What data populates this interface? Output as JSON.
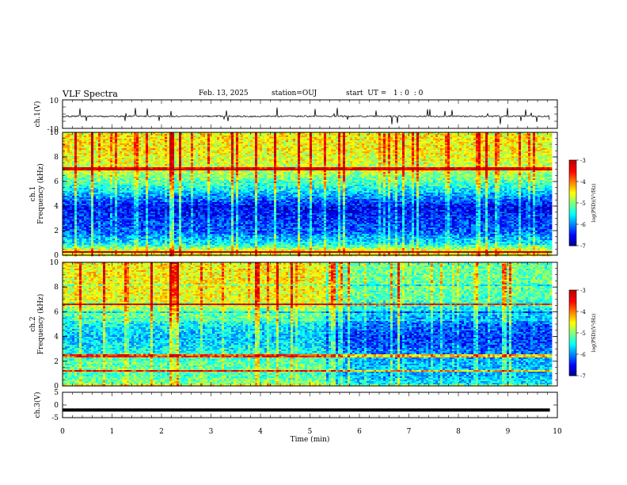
{
  "header": {
    "title": "VLF Spectra",
    "date": "Feb. 13, 2025",
    "station": "station=OUJ",
    "start": "start  UT =   1 : 0  : 0"
  },
  "colors": {
    "colormap": [
      "#000080",
      "#0000ff",
      "#0080ff",
      "#00ffff",
      "#80ff80",
      "#ffff00",
      "#ff8000",
      "#ff0000",
      "#c00000",
      "#ffffff"
    ]
  },
  "chart_data": [
    {
      "type": "line",
      "panel": "ch1-waveform",
      "ylabel": "ch.1(V)",
      "ylim": [
        -10,
        10
      ],
      "yticks": [
        "10",
        "-10"
      ],
      "x": [
        0,
        10
      ],
      "trace_level_v": -1.5,
      "trace_spread_v": 1.0
    },
    {
      "type": "heatmap",
      "panel": "ch1-spectrogram",
      "ylabel_line1": "ch.1",
      "ylabel_line2": "Frequency (kHz)",
      "ylim": [
        0,
        10
      ],
      "yticks": [
        "0",
        "2",
        "4",
        "6",
        "8",
        "10"
      ],
      "xlim": [
        0,
        10
      ],
      "data_extent_min": 9.85,
      "colorbar": {
        "label": "log(PSD)(V²/Hz)",
        "range": [
          -7,
          -3
        ],
        "ticks": [
          "-3",
          "-4",
          "-5",
          "-6",
          "-7"
        ]
      },
      "quiet_band_khz": [
        3.0,
        4.8
      ],
      "strong_lines_khz": [
        7.1,
        0.35
      ],
      "mean_log_psd_by_freq_khz": [
        [
          0.2,
          -4.2
        ],
        [
          1.0,
          -5.6
        ],
        [
          2.0,
          -6.2
        ],
        [
          3.0,
          -6.4
        ],
        [
          4.0,
          -6.6
        ],
        [
          5.0,
          -5.9
        ],
        [
          6.0,
          -5.3
        ],
        [
          7.0,
          -4.8
        ],
        [
          8.0,
          -4.7
        ],
        [
          9.0,
          -4.6
        ],
        [
          10.0,
          -4.6
        ]
      ]
    },
    {
      "type": "heatmap",
      "panel": "ch2-spectrogram",
      "ylabel_line1": "ch.2",
      "ylabel_line2": "Frequency (kHz)",
      "ylim": [
        0,
        10
      ],
      "yticks": [
        "0",
        "2",
        "4",
        "6",
        "8",
        "10"
      ],
      "xlim": [
        0,
        10
      ],
      "data_extent_min": 9.85,
      "colorbar": {
        "label": "log(PSD)(V²/Hz)",
        "range": [
          -7,
          -3
        ],
        "ticks": [
          "-3",
          "-4",
          "-5",
          "-6",
          "-7"
        ]
      },
      "change_at_min": 5.3,
      "strong_lines_khz": [
        6.7,
        2.5,
        1.3
      ],
      "mean_log_psd_by_freq_khz": [
        [
          0.2,
          -5.0
        ],
        [
          1.0,
          -5.3
        ],
        [
          2.0,
          -5.2
        ],
        [
          3.0,
          -5.6
        ],
        [
          4.0,
          -5.8
        ],
        [
          5.0,
          -5.6
        ],
        [
          6.0,
          -5.1
        ],
        [
          7.0,
          -4.7
        ],
        [
          8.0,
          -4.6
        ],
        [
          9.0,
          -4.6
        ],
        [
          10.0,
          -4.6
        ]
      ]
    },
    {
      "type": "line",
      "panel": "ch3-waveform",
      "ylabel": "ch.3(V)",
      "ylim": [
        -5,
        5
      ],
      "yticks": [
        "5",
        "0",
        "-5"
      ],
      "x": [
        0,
        9.85
      ],
      "y": [
        -2,
        -2
      ],
      "xlabel": "Time (min)",
      "xticks": [
        "0",
        "1",
        "2",
        "3",
        "4",
        "5",
        "6",
        "7",
        "8",
        "9",
        "10"
      ]
    }
  ]
}
